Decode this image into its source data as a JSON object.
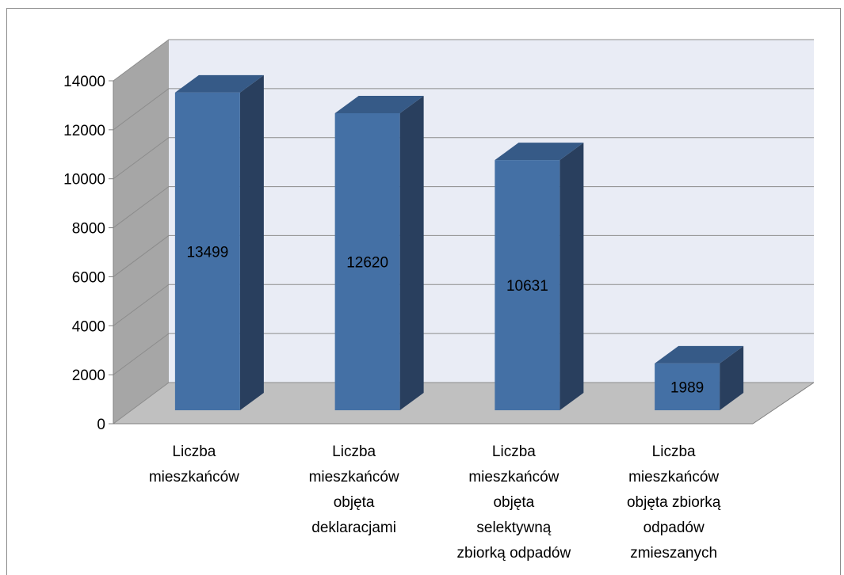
{
  "chart_data": {
    "type": "bar",
    "style": "3d-column",
    "categories": [
      [
        "Liczba",
        "mieszkańców"
      ],
      [
        "Liczba",
        "mieszkańców",
        "objęta",
        "deklaracjami"
      ],
      [
        "Liczba",
        "mieszkańców",
        "objęta",
        "selektywną",
        "zbiorką odpadów"
      ],
      [
        "Liczba",
        "mieszkańców",
        "objęta zbiorką",
        "odpadów",
        "zmieszanych"
      ]
    ],
    "values": [
      13499,
      12620,
      10631,
      1989
    ],
    "data_labels": [
      "13499",
      "12620",
      "10631",
      "1989"
    ],
    "ylim": [
      0,
      14000
    ],
    "yticks": [
      0,
      2000,
      4000,
      6000,
      8000,
      10000,
      12000,
      14000
    ],
    "grid": true,
    "legend": "none",
    "colors": {
      "bar_front": "#4470a5",
      "bar_side": "#293f5e",
      "bar_top": "#365a87",
      "back_wall": "#e9ecf5",
      "side_wall": "#a6a6a6",
      "floor": "#c0c0c0",
      "grid": "#8c8c8c"
    }
  }
}
